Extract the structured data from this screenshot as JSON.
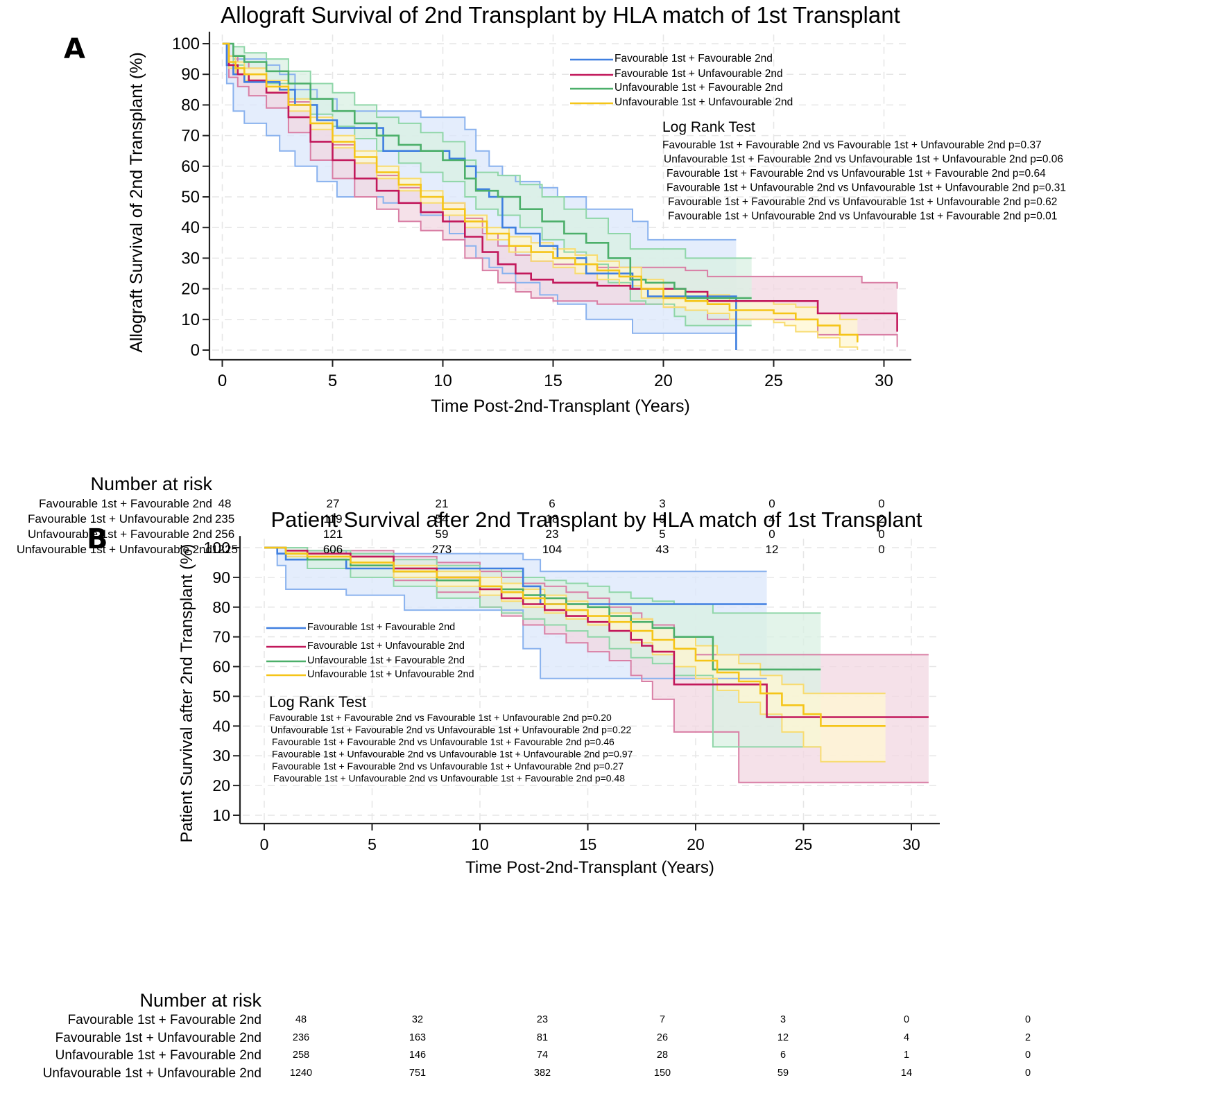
{
  "panels": [
    {
      "letter": "A",
      "risk_title": "Number at risk",
      "risk_table": {
        "times": [
          0,
          5,
          10,
          15,
          20,
          25,
          30
        ],
        "rows": [
          {
            "label": "Favourable 1st + Favourable 2nd",
            "values": [
              48,
              27,
              21,
              6,
              3,
              0,
              0
            ]
          },
          {
            "label": "Favourable 1st + Unfavourable 2nd",
            "values": [
              235,
              119,
              54,
              18,
              9,
              4,
              2
            ]
          },
          {
            "label": "Unfavourable 1st + Favourable 2nd",
            "values": [
              256,
              121,
              59,
              23,
              5,
              0,
              0
            ]
          },
          {
            "label": "Unfavourable 1st + Unfavourable 2nd",
            "values": [
              1225,
              606,
              273,
              104,
              43,
              12,
              0
            ]
          }
        ]
      }
    },
    {
      "letter": "B",
      "risk_title": "Number at risk",
      "risk_table": {
        "times": [
          0,
          5,
          10,
          15,
          20,
          25,
          30
        ],
        "rows": [
          {
            "label": "Favourable 1st + Favourable 2nd",
            "values": [
              48,
              32,
              23,
              7,
              3,
              0,
              0
            ]
          },
          {
            "label": "Favourable 1st + Unfavourable 2nd",
            "values": [
              236,
              163,
              81,
              26,
              12,
              4,
              2
            ]
          },
          {
            "label": "Unfavourable 1st + Favourable 2nd",
            "values": [
              258,
              146,
              74,
              28,
              6,
              1,
              0
            ]
          },
          {
            "label": "Unfavourable 1st + Unfavourable 2nd",
            "values": [
              1240,
              751,
              382,
              150,
              59,
              14,
              0
            ]
          }
        ]
      }
    }
  ],
  "chart_data": [
    {
      "type": "line",
      "subtype": "kaplan-meier-step",
      "title": "Allograft Survival of 2nd Transplant by HLA match of 1st Transplant",
      "xlabel": "Time Post-2nd-Transplant (Years)",
      "ylabel": "Allograft Survival of 2nd Transplant (%)",
      "xlim": [
        -0.5,
        31.3
      ],
      "ylim": [
        -4,
        103
      ],
      "xticks": [
        0,
        5,
        10,
        15,
        20,
        25,
        30
      ],
      "yticks": [
        0,
        10,
        20,
        30,
        40,
        50,
        60,
        70,
        80,
        90,
        100
      ],
      "grid": true,
      "legend_position": "top-right",
      "annotation_title": "Log Rank Test",
      "annotations": [
        "Favourable 1st + Favourable 2nd vs Favourable 1st + Unfavourable 2nd p=0.37",
        "Unfavourable 1st + Favourable 2nd vs Unfavourable 1st + Unfavourable 2nd p=0.06",
        "Favourable 1st + Favourable 2nd vs Unfavourable 1st + Favourable 2nd p=0.64",
        "Favourable 1st + Unfavourable 2nd vs Unfavourable 1st + Unfavourable 2nd p=0.31",
        "Favourable 1st + Favourable 2nd vs Unfavourable 1st + Unfavourable 2nd p=0.62",
        "Favourable 1st + Unfavourable 2nd vs Unfavourable 1st + Favourable 2nd p=0.01"
      ],
      "series": [
        {
          "name": "Favourable 1st + Favourable 2nd",
          "color": "#3f7fe0",
          "fill": "#dbe7fb",
          "band": "#8ab2ee",
          "x": [
            0,
            0.2,
            0.5,
            1.0,
            2.0,
            2.6,
            3.3,
            4.3,
            5.2,
            7.3,
            9.0,
            10.3,
            11.0,
            11.5,
            12.1,
            12.7,
            13.3,
            14.4,
            15.2,
            16.5,
            18.6,
            19.3,
            23.3
          ],
          "y": [
            100,
            93,
            90,
            87.5,
            87.5,
            85,
            80,
            75,
            72.5,
            65,
            65,
            62.5,
            60,
            52.5,
            50,
            40,
            38,
            34,
            30,
            25,
            20,
            17.5,
            0
          ],
          "upper": [
            100,
            100,
            95,
            95,
            93,
            90,
            85,
            82,
            78,
            78,
            76,
            76,
            72,
            65,
            60,
            57,
            55,
            53,
            50,
            46,
            42,
            36,
            36
          ],
          "lower": [
            100,
            87,
            78,
            74,
            70,
            65,
            60,
            55,
            50,
            48,
            44,
            38,
            34,
            30,
            27,
            25,
            22,
            18,
            15,
            10,
            5.5,
            5.5,
            5.5
          ]
        },
        {
          "name": "Favourable 1st + Unfavourable 2nd",
          "color": "#c2185b",
          "fill": "#f1d7e2",
          "band": "#d97fa5",
          "x": [
            0,
            0.3,
            0.7,
            1.2,
            2,
            3,
            4,
            5,
            6,
            7,
            8,
            9,
            10,
            11,
            11.8,
            12.5,
            13.3,
            14,
            15,
            17,
            18.5,
            20,
            21,
            22,
            25,
            27,
            29,
            30.6
          ],
          "y": [
            100,
            93,
            90,
            88,
            84,
            76,
            68,
            62,
            56,
            52,
            48,
            45,
            42,
            37,
            32,
            28,
            25,
            23,
            22,
            21,
            20,
            20,
            19,
            16,
            16,
            12,
            12,
            6
          ],
          "upper": [
            100,
            96,
            94,
            92,
            88,
            81,
            74,
            67,
            61,
            57,
            53,
            50,
            48,
            43,
            38,
            34,
            31,
            29,
            28,
            27,
            27,
            27,
            26,
            24,
            24,
            24,
            22,
            20
          ],
          "lower": [
            100,
            89,
            86,
            83,
            79,
            71,
            62,
            56,
            50,
            46,
            42,
            39,
            36,
            30,
            26,
            22,
            19,
            17,
            16,
            15,
            15,
            14,
            13,
            10,
            10,
            5,
            5,
            1
          ]
        },
        {
          "name": "Unfavourable 1st + Favourable 2nd",
          "color": "#4caf6a",
          "fill": "#d9f0e3",
          "band": "#8fd6a8",
          "x": [
            0,
            0.5,
            1,
            2,
            3,
            4,
            5,
            6,
            7,
            8,
            9,
            10,
            11,
            11.5,
            12.5,
            13.5,
            14.5,
            15.5,
            16.5,
            17.5,
            18.5,
            19.2,
            20.5,
            21,
            24
          ],
          "y": [
            100,
            96,
            94,
            91,
            87,
            82,
            78,
            74,
            70,
            67,
            65,
            62,
            56,
            52,
            50,
            46,
            42,
            38,
            35,
            30,
            23,
            22,
            20,
            17,
            17
          ],
          "upper": [
            100,
            99,
            97,
            95,
            91,
            87,
            84,
            80,
            76,
            74,
            71,
            68,
            62,
            58,
            57,
            54,
            50,
            46,
            43,
            38,
            33,
            33,
            33,
            30,
            30
          ],
          "lower": [
            100,
            93,
            90,
            87,
            82,
            77,
            73,
            69,
            65,
            61,
            58,
            55,
            50,
            46,
            44,
            40,
            36,
            32,
            28,
            22,
            16,
            15,
            11,
            8,
            8
          ]
        },
        {
          "name": "Unfavourable 1st + Unfavourable 2nd",
          "color": "#f5c518",
          "fill": "#fff7d1",
          "band": "#f8dc70",
          "x": [
            0,
            0.3,
            0.6,
            1,
            2,
            3,
            4,
            5,
            6,
            7,
            8,
            9,
            10,
            11,
            12,
            13,
            14,
            15,
            16,
            17,
            18,
            19,
            20,
            21,
            22,
            23,
            25,
            25.5,
            26,
            27,
            28,
            28.8
          ],
          "y": [
            100,
            94,
            92,
            90,
            86,
            80,
            74,
            68,
            63,
            58,
            54,
            50,
            46,
            42,
            38,
            34,
            32,
            30,
            28,
            26,
            24,
            20,
            17,
            16,
            15,
            13,
            12,
            12,
            10,
            8,
            5,
            2.5
          ],
          "upper": [
            100,
            96,
            94,
            92,
            88,
            82,
            76,
            70,
            65,
            60,
            56,
            52,
            48,
            44,
            40,
            37,
            35,
            33,
            31,
            29,
            27,
            23,
            20,
            19,
            18,
            16,
            15,
            15,
            14,
            12,
            10,
            10
          ],
          "lower": [
            100,
            92,
            90,
            88,
            84,
            78,
            72,
            66,
            61,
            56,
            52,
            48,
            44,
            40,
            36,
            32,
            29,
            27,
            25,
            23,
            21,
            17,
            14,
            13,
            12,
            10,
            9,
            8,
            6,
            4,
            1,
            0
          ]
        }
      ]
    },
    {
      "type": "line",
      "subtype": "kaplan-meier-step",
      "title": "Patient Survival after 2nd Transplant by HLA match of 1st Transplant",
      "xlabel": "Time Post-2nd-Transplant (Years)",
      "ylabel": "Patient Survival after 2nd Transplant (%)",
      "xlim": [
        -0.8,
        31.3
      ],
      "ylim": [
        7,
        103
      ],
      "xticks": [
        0,
        5,
        10,
        15,
        20,
        25,
        30
      ],
      "yticks": [
        10,
        20,
        30,
        40,
        50,
        60,
        70,
        80,
        90,
        100
      ],
      "grid": true,
      "legend_position": "middle-left",
      "annotation_title": "Log Rank Test",
      "annotations": [
        "Favourable 1st + Favourable 2nd vs Favourable 1st + Unfavourable 2nd p=0.20",
        "Unfavourable 1st + Favourable 2nd vs Unfavourable 1st + Unfavourable 2nd p=0.22",
        "Favourable 1st + Favourable 2nd vs Unfavourable 1st + Favourable 2nd p=0.46",
        "Favourable 1st + Unfavourable 2nd vs Unfavourable 1st + Unfavourable 2nd p=0.97",
        "Favourable 1st + Favourable 2nd vs Unfavourable 1st + Unfavourable 2nd p=0.27",
        "Favourable 1st + Unfavourable 2nd vs Unfavourable 1st + Favourable 2nd p=0.48"
      ],
      "series": [
        {
          "name": "Favourable 1st + Favourable 2nd",
          "color": "#3f7fe0",
          "fill": "#dbe7fb",
          "band": "#8ab2ee",
          "x": [
            0,
            0.6,
            1.0,
            3.8,
            6.5,
            12.0,
            12.8,
            23.3
          ],
          "y": [
            100,
            98,
            96,
            93,
            93,
            87,
            81,
            81
          ],
          "upper": [
            100,
            100,
            99,
            98,
            98,
            96,
            92,
            92
          ],
          "lower": [
            100,
            94,
            86,
            84,
            79,
            66,
            56,
            56
          ]
        },
        {
          "name": "Favourable 1st + Unfavourable 2nd",
          "color": "#c2185b",
          "fill": "#f1d7e2",
          "band": "#d97fa5",
          "x": [
            0,
            1,
            2,
            4,
            6,
            8,
            10,
            11,
            12,
            13,
            14,
            15,
            16,
            17,
            17.5,
            18,
            19,
            20,
            22,
            23.3,
            30.8
          ],
          "y": [
            100,
            99,
            98,
            97,
            93,
            90,
            86,
            83,
            81,
            79,
            77,
            75,
            72,
            69,
            67,
            65,
            54,
            54,
            54,
            43,
            43
          ],
          "upper": [
            100,
            100,
            99,
            99,
            97,
            95,
            92,
            90,
            88,
            87,
            85,
            83,
            80,
            78,
            76,
            74,
            66,
            64,
            64,
            64,
            64
          ],
          "lower": [
            100,
            97,
            96,
            94,
            89,
            85,
            80,
            77,
            74,
            71,
            68,
            65,
            62,
            57,
            55,
            49,
            38,
            38,
            21,
            21,
            21
          ]
        },
        {
          "name": "Unfavourable 1st + Favourable 2nd",
          "color": "#4caf6a",
          "fill": "#d9f0e3",
          "band": "#8fd6a8",
          "x": [
            0,
            1,
            2,
            4,
            6,
            8,
            10,
            11,
            12,
            13,
            14,
            15,
            16,
            17,
            18,
            19,
            20.8,
            25.8
          ],
          "y": [
            100,
            98,
            96,
            94,
            92,
            89,
            87,
            86,
            84,
            83,
            81,
            80,
            77,
            75,
            73,
            70,
            59,
            59
          ],
          "upper": [
            100,
            100,
            99,
            98,
            96,
            94,
            93,
            92,
            90,
            89,
            88,
            87,
            85,
            83,
            82,
            81,
            78,
            78
          ],
          "lower": [
            100,
            96,
            93,
            90,
            87,
            83,
            80,
            78,
            76,
            74,
            72,
            70,
            66,
            63,
            61,
            57,
            33,
            33
          ]
        },
        {
          "name": "Unfavourable 1st + Unfavourable 2nd",
          "color": "#f5c518",
          "fill": "#fff7d1",
          "band": "#f8dc70",
          "x": [
            0,
            1,
            2,
            4,
            6,
            8,
            10,
            11,
            12,
            13,
            14,
            15,
            16,
            17,
            18,
            19,
            20,
            21,
            22,
            23,
            24,
            25,
            25.8,
            28.8
          ],
          "y": [
            100,
            98,
            97,
            95,
            92,
            90,
            87,
            85,
            83,
            81,
            79,
            77,
            75,
            72,
            69,
            66,
            62,
            58,
            55,
            51,
            47,
            44,
            40,
            40
          ],
          "upper": [
            100,
            99,
            98,
            97,
            94,
            92,
            90,
            88,
            86,
            84,
            82,
            80,
            78,
            76,
            73,
            70,
            67,
            64,
            61,
            57,
            54,
            51,
            51,
            51
          ],
          "lower": [
            100,
            97,
            96,
            93,
            90,
            87,
            84,
            82,
            80,
            78,
            76,
            74,
            72,
            68,
            64,
            60,
            56,
            52,
            48,
            44,
            38,
            33,
            28,
            28
          ]
        }
      ]
    }
  ]
}
